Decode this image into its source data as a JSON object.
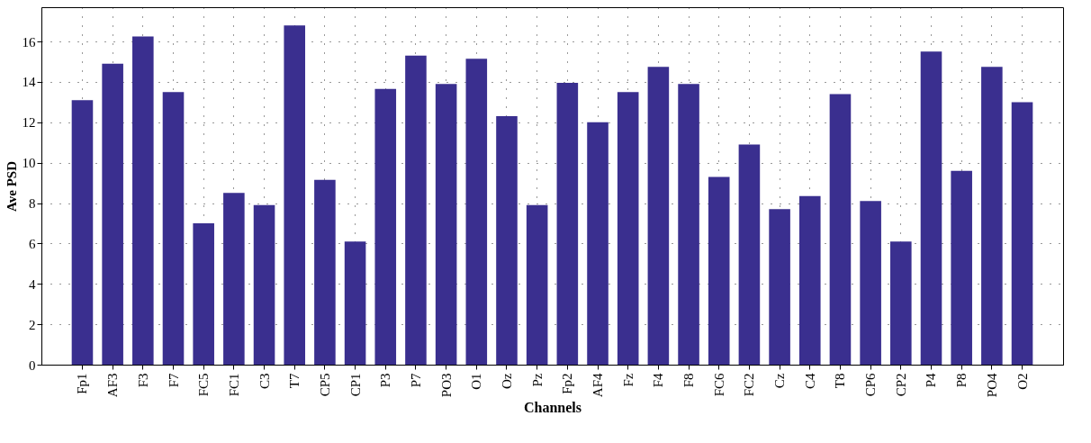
{
  "chart_data": {
    "type": "bar",
    "xlabel": "Channels",
    "ylabel": "Ave PSD",
    "categories": [
      "Fp1",
      "AF3",
      "F3",
      "F7",
      "FC5",
      "FC1",
      "C3",
      "T7",
      "CP5",
      "CP1",
      "P3",
      "P7",
      "PO3",
      "O1",
      "Oz",
      "Pz",
      "Fp2",
      "AF4",
      "Fz",
      "F4",
      "F8",
      "FC6",
      "FC2",
      "Cz",
      "C4",
      "T8",
      "CP6",
      "CP2",
      "P4",
      "P8",
      "PO4",
      "O2"
    ],
    "values": [
      13.1,
      14.9,
      16.25,
      13.5,
      7.0,
      8.5,
      7.9,
      16.8,
      9.15,
      6.1,
      13.65,
      15.3,
      13.9,
      15.15,
      12.3,
      7.9,
      13.95,
      12.0,
      13.5,
      14.75,
      13.9,
      9.3,
      10.9,
      7.7,
      8.35,
      13.4,
      8.1,
      6.1,
      15.5,
      9.6,
      14.75,
      13.0
    ],
    "color": "#3a2f8f",
    "ylim": [
      0,
      17.7
    ],
    "yticks": [
      0,
      2,
      4,
      6,
      8,
      10,
      12,
      14,
      16
    ],
    "grid": true
  }
}
